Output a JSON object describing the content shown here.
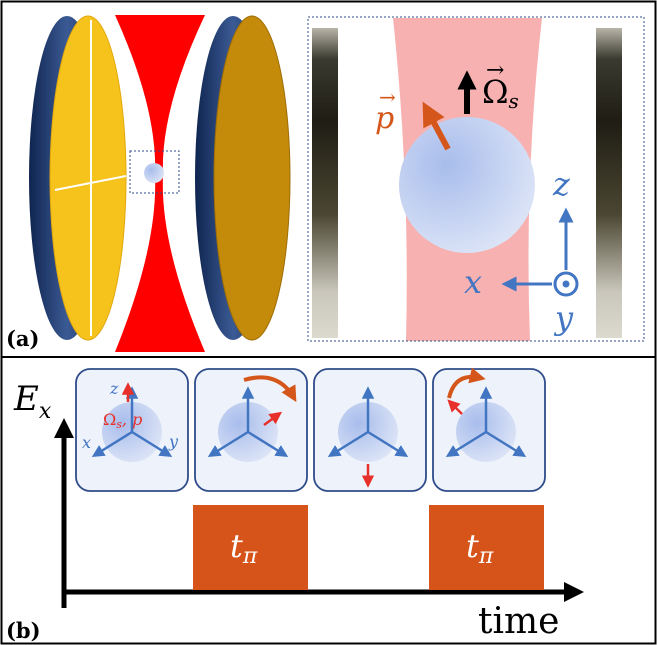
{
  "panel_a": {
    "label": "(a)",
    "inset": {
      "vec_omega": "Ω",
      "vec_omega_sub": "s",
      "vec_p": "p",
      "axis_z": "z",
      "axis_x": "x",
      "axis_y": "y"
    }
  },
  "panel_b": {
    "label": "(b)",
    "y_axis_label": "E",
    "y_axis_sub": "x",
    "x_axis_label": "time",
    "box1": {
      "axis_z": "z",
      "axis_x": "x",
      "axis_y": "y",
      "vec_label_omega": "Ω",
      "vec_label_sub": "s",
      "vec_label_p": ", p"
    },
    "pulses": [
      {
        "label": "t",
        "sub": "π"
      },
      {
        "label": "t",
        "sub": "π"
      }
    ]
  },
  "colors": {
    "frame": "#000000",
    "mirror_left_face": "#f6c21c",
    "mirror_right_face": "#c48a0a",
    "mirror_rim": "#1f3a6b",
    "laser": "#ff0000",
    "laser_light": "#f7b1b1",
    "particle": "#b9c8ee",
    "axis_blue": "#4275c2",
    "vector_red": "#e8302a",
    "rotation_orange": "#d4561a",
    "pulse_fill": "#d6541a",
    "box_border": "#2f4c8a",
    "box_fill": "#eef3fb"
  }
}
